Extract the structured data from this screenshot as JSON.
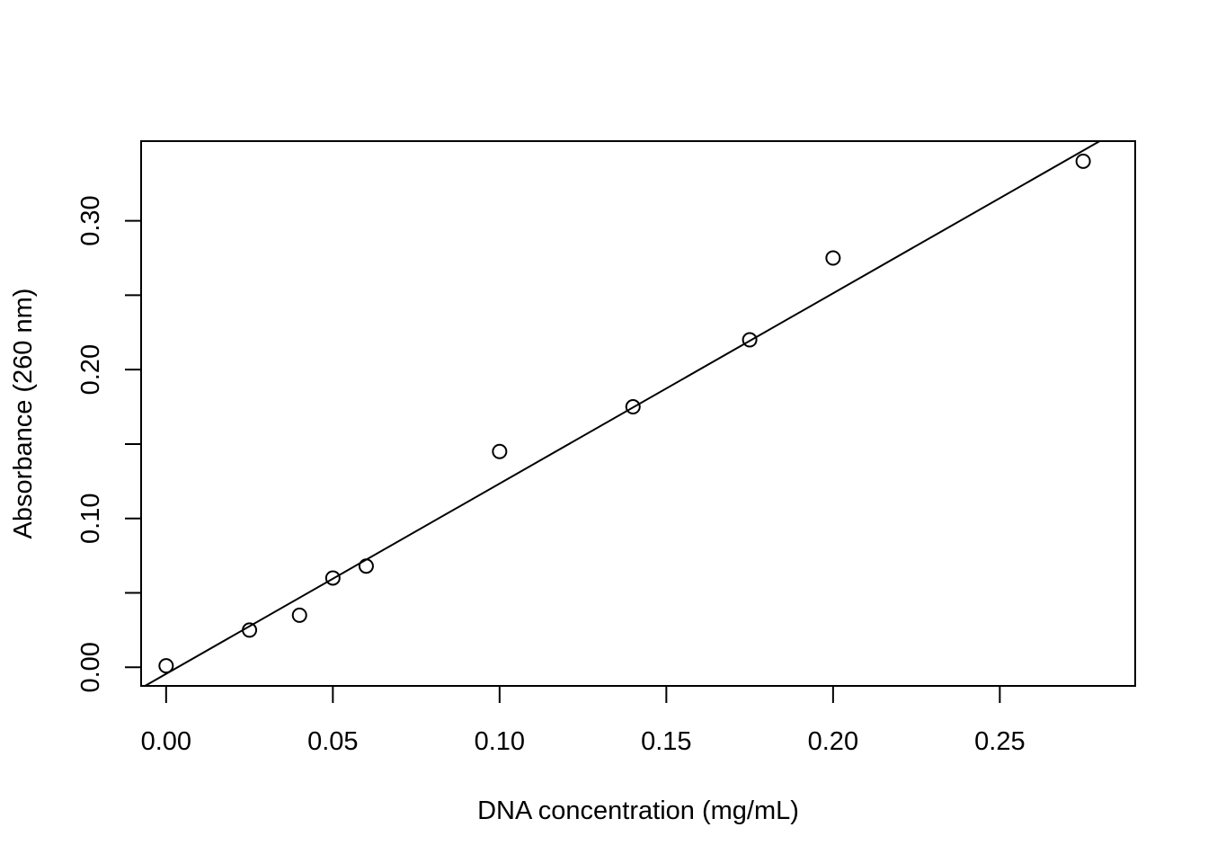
{
  "chart_data": {
    "type": "scatter",
    "title": "",
    "xlabel": "DNA concentration (mg/mL)",
    "ylabel": "Absorbance (260 nm)",
    "xlim": [
      -0.0075,
      0.2906
    ],
    "ylim": [
      -0.0125,
      0.3535
    ],
    "xticks": [
      0.0,
      0.05,
      0.1,
      0.15,
      0.2,
      0.25
    ],
    "xtick_labels": [
      "0.00",
      "0.05",
      "0.10",
      "0.15",
      "0.20",
      "0.25"
    ],
    "yticks": [
      0.0,
      0.05,
      0.1,
      0.15,
      0.2,
      0.25,
      0.3
    ],
    "ytick_labels": [
      "0.00",
      "",
      "0.10",
      "",
      "0.20",
      "",
      "0.30"
    ],
    "grid": false,
    "points": [
      {
        "x": 0.0,
        "y": 0.001
      },
      {
        "x": 0.025,
        "y": 0.025
      },
      {
        "x": 0.04,
        "y": 0.035
      },
      {
        "x": 0.05,
        "y": 0.06
      },
      {
        "x": 0.06,
        "y": 0.068
      },
      {
        "x": 0.1,
        "y": 0.145
      },
      {
        "x": 0.14,
        "y": 0.175
      },
      {
        "x": 0.175,
        "y": 0.22
      },
      {
        "x": 0.2,
        "y": 0.275
      },
      {
        "x": 0.275,
        "y": 0.34
      }
    ],
    "fit_line": {
      "slope": 1.2784,
      "intercept": -0.0044
    }
  }
}
